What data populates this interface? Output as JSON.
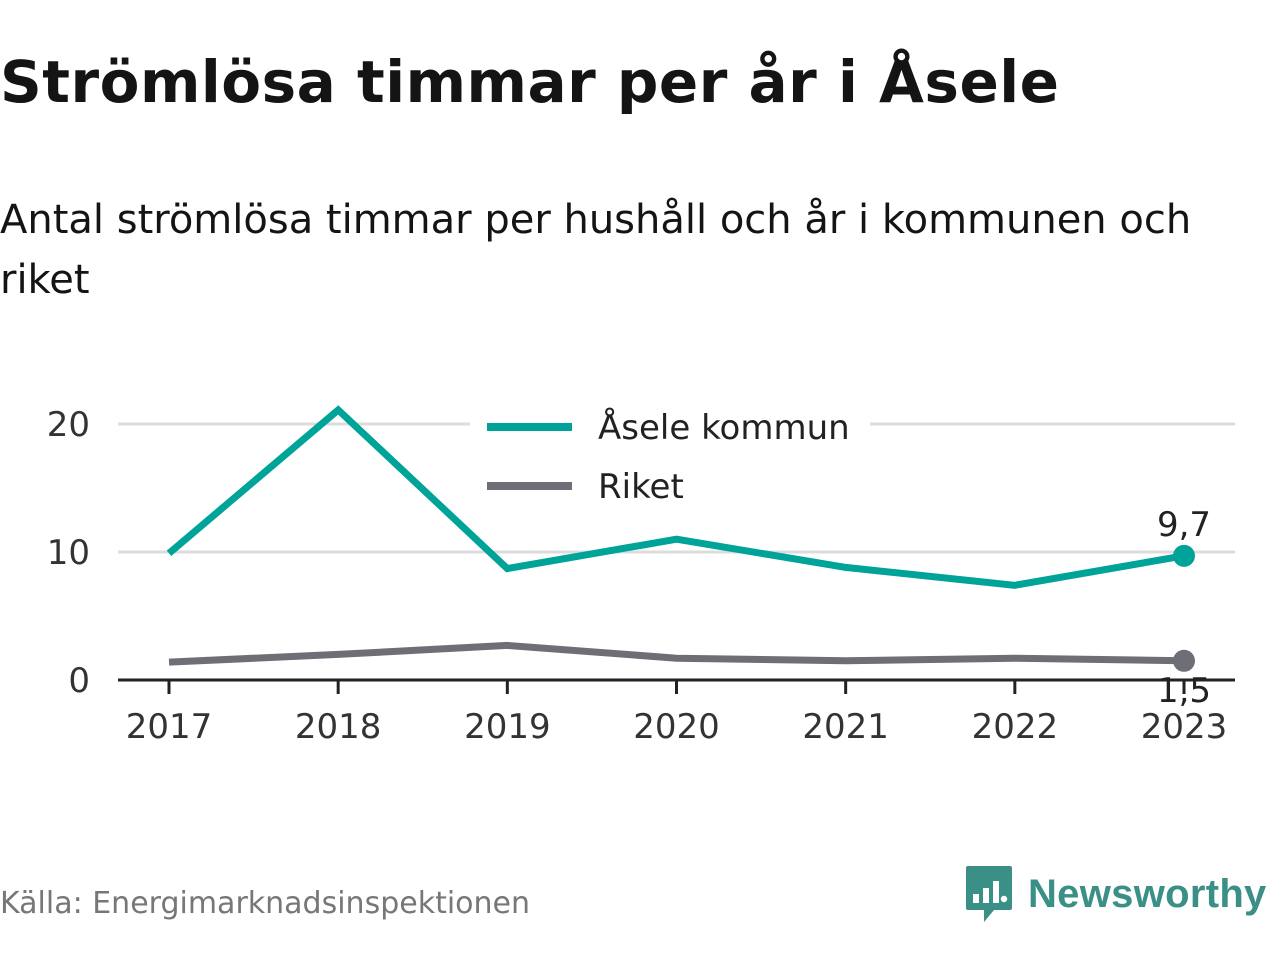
{
  "title": "Strömlösa timmar per år i Åsele",
  "subtitle": "Antal strömlösa timmar per hushåll och år i kommunen och riket",
  "source": "Källa: Energimarknadsinspektionen",
  "brand": {
    "name": "Newsworthy",
    "icon": "newsworthy-logo-icon",
    "color": "#3a8f86"
  },
  "chart_data": {
    "type": "line",
    "x": [
      "2017",
      "2018",
      "2019",
      "2020",
      "2021",
      "2022",
      "2023"
    ],
    "ylim": [
      0,
      22
    ],
    "yticks": [
      0,
      10,
      20
    ],
    "grid": true,
    "legend": "top-center",
    "series": [
      {
        "name": "Åsele kommun",
        "color": "#00a398",
        "values": [
          9.9,
          21.1,
          8.7,
          11.0,
          8.8,
          7.4,
          9.7
        ],
        "end_label": "9,7"
      },
      {
        "name": "Riket",
        "color": "#6d6e76",
        "values": [
          1.4,
          2.0,
          2.7,
          1.7,
          1.5,
          1.7,
          1.5
        ],
        "end_label": "1,5"
      }
    ]
  }
}
